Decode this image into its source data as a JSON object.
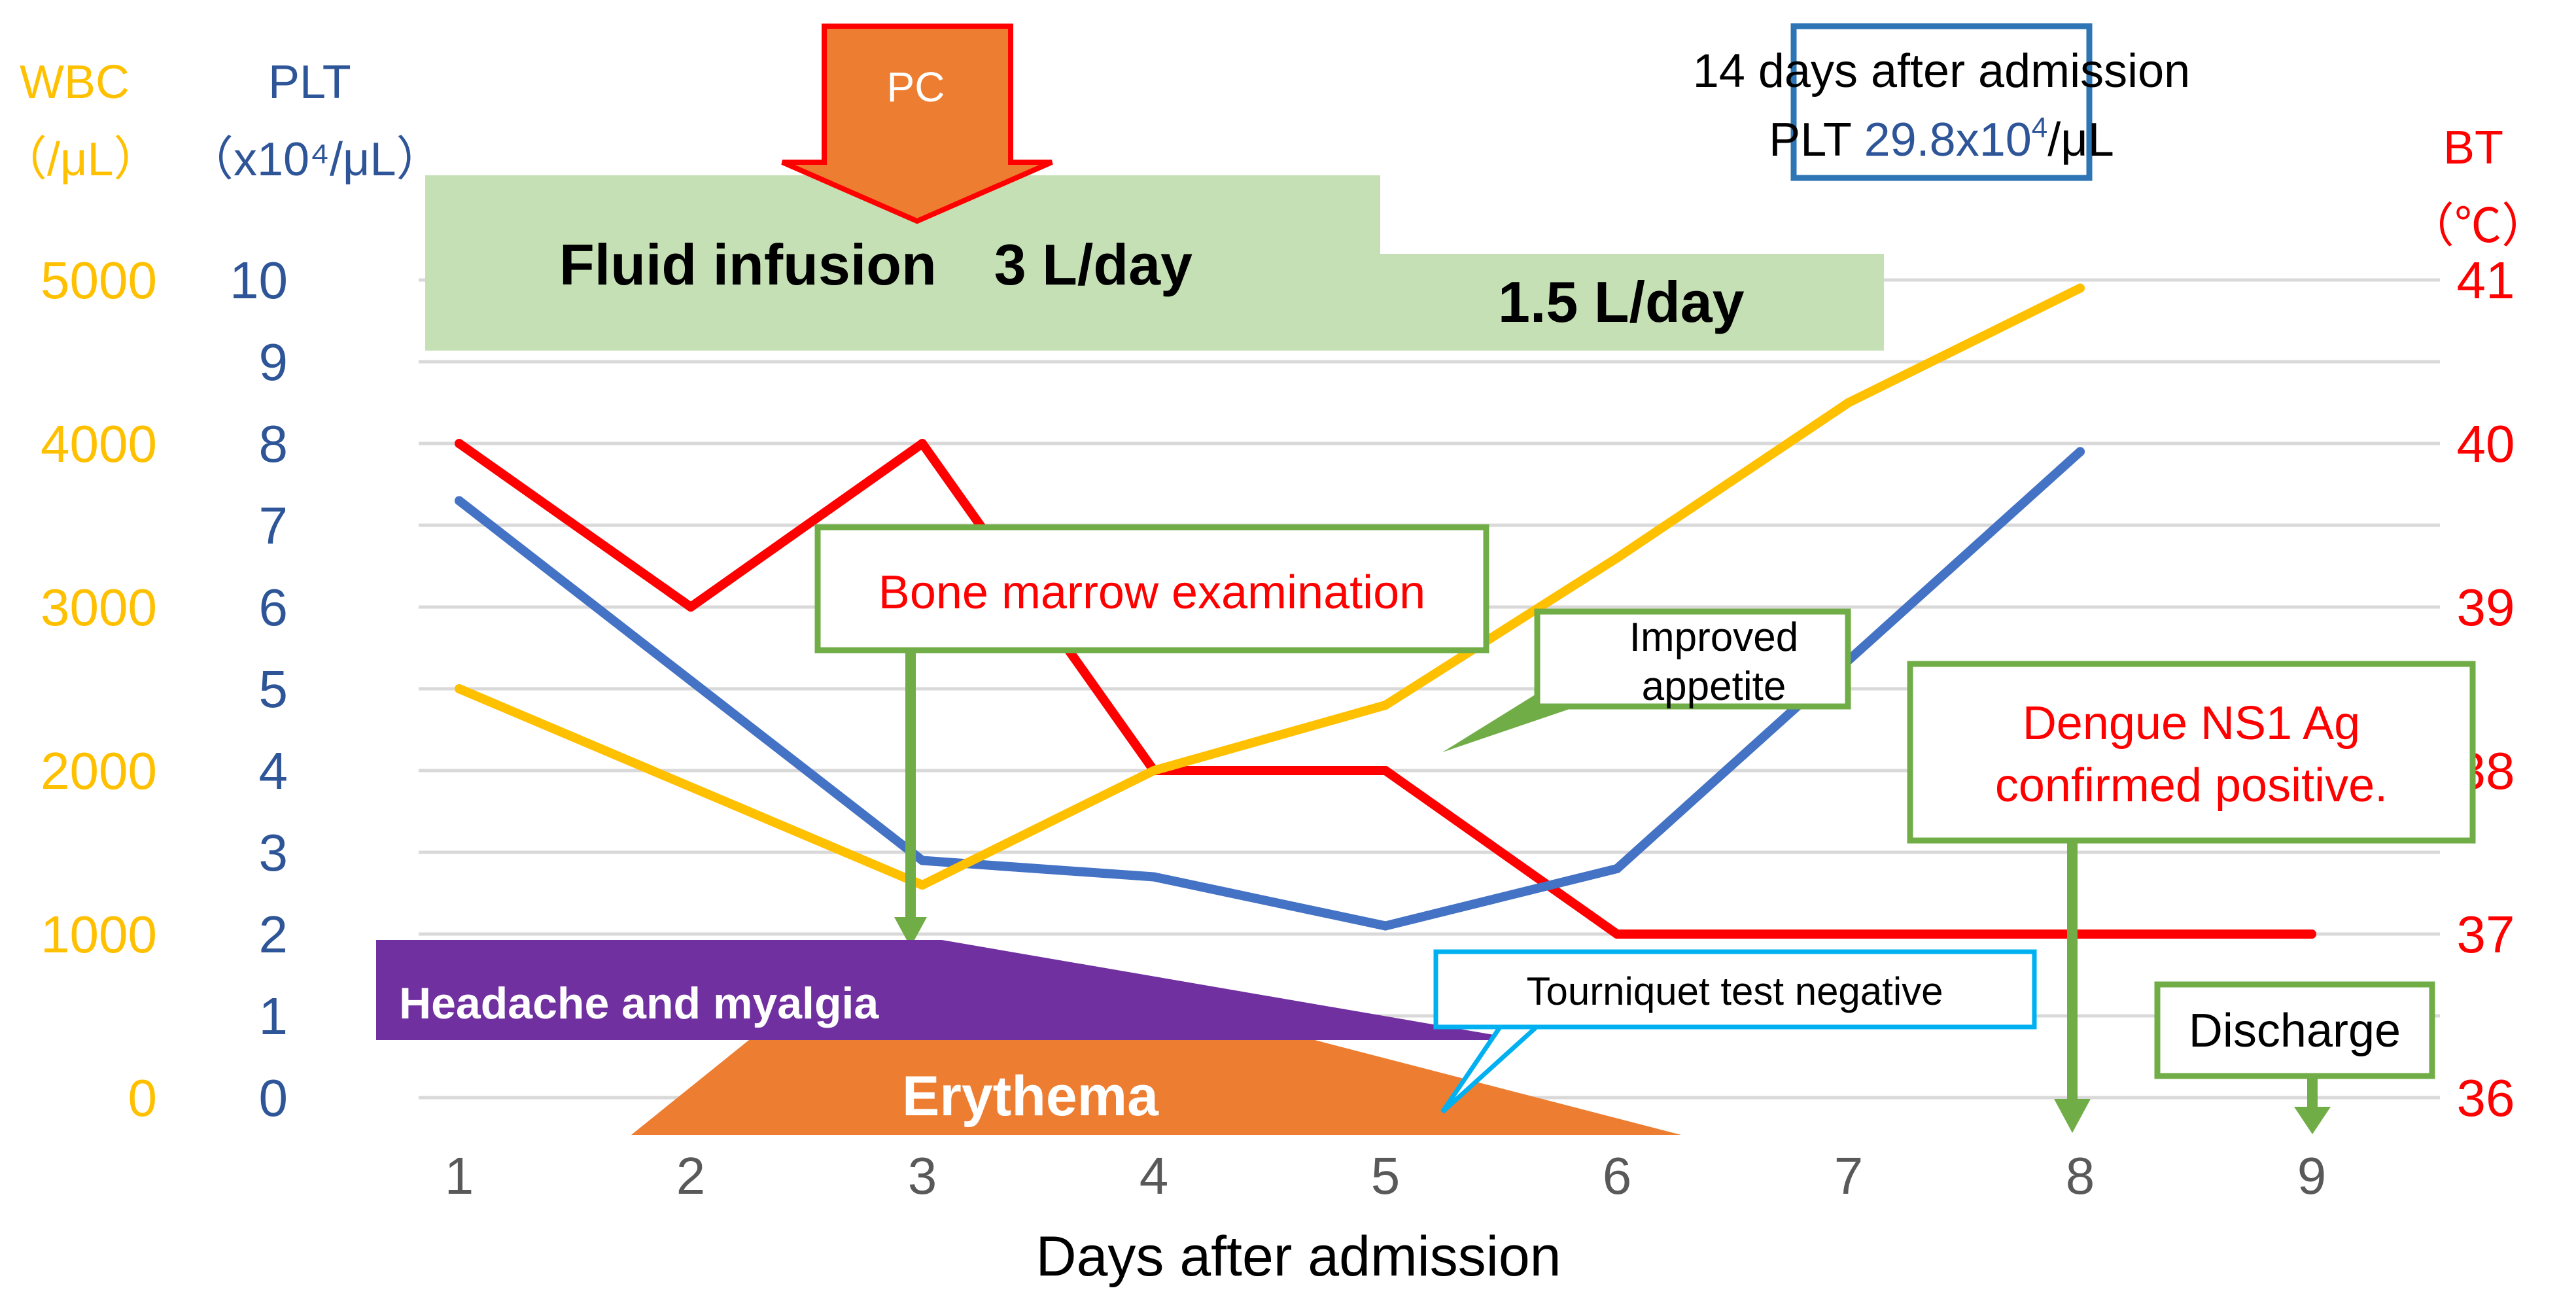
{
  "chart_data": {
    "type": "line",
    "title": "",
    "xlabel": "Days after admission",
    "categories": [
      "1",
      "2",
      "3",
      "4",
      "5",
      "6",
      "7",
      "8",
      "9"
    ],
    "axes": {
      "left_outer": {
        "label": "WBC",
        "unit": "（/μL）",
        "ticks": [
          "0",
          "1000",
          "2000",
          "3000",
          "4000",
          "5000"
        ],
        "range": [
          0,
          5000
        ],
        "color": "#ffc000"
      },
      "left_inner": {
        "label": "PLT",
        "unit": "（x10⁴/μL）",
        "ticks": [
          "0",
          "1",
          "2",
          "3",
          "4",
          "5",
          "6",
          "7",
          "8",
          "9",
          "10"
        ],
        "range": [
          0,
          10
        ],
        "color": "#2e5597"
      },
      "right": {
        "label": "BT",
        "unit": "（℃）",
        "ticks": [
          "36",
          "37",
          "38",
          "39",
          "40",
          "41"
        ],
        "range": [
          36,
          41
        ],
        "color": "#ff0000"
      }
    },
    "series": [
      {
        "name": "BT",
        "axis": "right",
        "color": "#ff0000",
        "x": [
          1,
          2,
          3,
          4,
          5,
          6,
          7,
          8,
          9
        ],
        "values": [
          40,
          39,
          40,
          38,
          38,
          37,
          37,
          37,
          37
        ]
      },
      {
        "name": "PLT",
        "axis": "left_inner",
        "color": "#4472c4",
        "x": [
          1,
          2,
          3,
          4,
          5,
          6,
          8
        ],
        "values": [
          7.3,
          5.1,
          2.9,
          2.7,
          2.1,
          2.8,
          7.9
        ]
      },
      {
        "name": "WBC",
        "axis": "left_outer",
        "color": "#ffc000",
        "x": [
          1,
          3,
          4,
          5,
          6,
          7,
          8
        ],
        "values": [
          2500,
          1300,
          2000,
          2400,
          3300,
          4250,
          4950
        ]
      }
    ],
    "grid": true
  },
  "annotations": {
    "pc": "PC",
    "fluid_high": "Fluid infusion　3 L/day",
    "fluid_low": "1.5 L/day",
    "day14_line1": "14 days after admission",
    "day14_prefix": "PLT ",
    "day14_value": "29.8x10",
    "day14_exp": "4",
    "day14_suffix": "/μL",
    "bone_marrow": "Bone marrow examination",
    "appetite_line1": "Improved",
    "appetite_line2": "appetite",
    "dengue_line1": "Dengue NS1 Ag",
    "dengue_line2": "confirmed positive.",
    "tourniquet": "Tourniquet test negative",
    "discharge": "Discharge",
    "headache": "Headache and myalgia",
    "erythema": "Erythema"
  }
}
